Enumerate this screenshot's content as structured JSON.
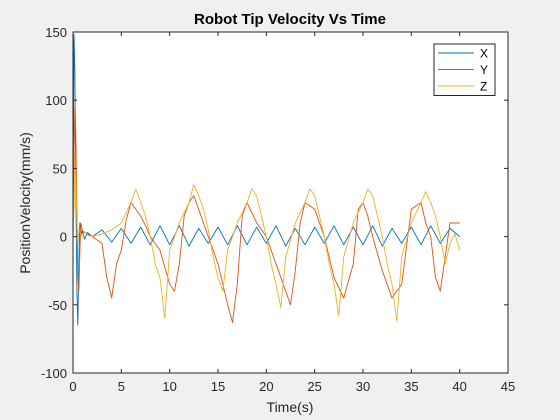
{
  "chart_data": {
    "type": "line",
    "title": "Robot Tip Velocity Vs Time",
    "xlabel": "Time(s)",
    "ylabel": "PositionVelocity(mm/s)",
    "xlim": [
      0,
      45
    ],
    "ylim": [
      -100,
      150
    ],
    "xticks": [
      0,
      5,
      10,
      15,
      20,
      25,
      30,
      35,
      40,
      45
    ],
    "yticks": [
      -100,
      -50,
      0,
      50,
      100,
      150
    ],
    "grid": false,
    "legend_position": "top-right",
    "series": [
      {
        "name": "X",
        "color": "#0072BD",
        "x": [
          0,
          0.1,
          0.2,
          0.3,
          0.4,
          0.5,
          0.6,
          0.7,
          0.8,
          0.9,
          1.0,
          1.2,
          1.5,
          2,
          3,
          4,
          5,
          6,
          7,
          8,
          9,
          10,
          11,
          12,
          13,
          14,
          15,
          16,
          17,
          18,
          19,
          20,
          21,
          22,
          23,
          24,
          25,
          26,
          27,
          28,
          29,
          30,
          31,
          32,
          33,
          34,
          35,
          36,
          37,
          38,
          39,
          40
        ],
        "values": [
          0,
          148,
          120,
          30,
          -40,
          -65,
          -20,
          10,
          6,
          2,
          4,
          -2,
          3,
          0,
          5,
          -4,
          6,
          -5,
          7,
          -6,
          8,
          -6,
          8,
          -7,
          6,
          -5,
          7,
          -6,
          8,
          -6,
          7,
          -5,
          8,
          -7,
          6,
          -6,
          7,
          -5,
          8,
          -6,
          7,
          -6,
          8,
          -7,
          6,
          -5,
          7,
          -6,
          8,
          -5,
          6,
          0
        ]
      },
      {
        "name": "Y",
        "color": "#D95319",
        "x": [
          0,
          0.1,
          0.2,
          0.3,
          0.4,
          0.5,
          0.6,
          0.8,
          1.0,
          1.5,
          2,
          3,
          3.5,
          4,
          4.5,
          5,
          5.5,
          6,
          6.5,
          7,
          7.5,
          8,
          9,
          10,
          10.5,
          11,
          11.5,
          12,
          12.5,
          13,
          13.5,
          14,
          15,
          16,
          16.5,
          17,
          17.5,
          18,
          19,
          20,
          21,
          22,
          22.5,
          23,
          23.5,
          24,
          25,
          26,
          27,
          28,
          29,
          29.5,
          30,
          30.5,
          31,
          32,
          33,
          34,
          35,
          36,
          36.5,
          37,
          37.5,
          38,
          39,
          40
        ],
        "values": [
          0,
          60,
          95,
          70,
          20,
          -30,
          -40,
          10,
          4,
          2,
          0,
          -5,
          -30,
          -45,
          -20,
          -10,
          12,
          25,
          20,
          15,
          8,
          0,
          -10,
          -35,
          -40,
          -20,
          15,
          25,
          30,
          20,
          10,
          0,
          -20,
          -50,
          -63,
          -35,
          15,
          25,
          10,
          0,
          -20,
          -40,
          -50,
          -25,
          10,
          25,
          20,
          0,
          -30,
          -45,
          -20,
          20,
          25,
          15,
          0,
          -25,
          -45,
          -35,
          20,
          25,
          10,
          0,
          -30,
          -40,
          10,
          10
        ]
      },
      {
        "name": "Z",
        "color": "#EDB120",
        "x": [
          0,
          0.1,
          0.2,
          0.3,
          0.4,
          0.5,
          0.6,
          0.8,
          1.0,
          1.5,
          2,
          3,
          4,
          5,
          6,
          6.5,
          7,
          7.5,
          8,
          8.5,
          9,
          9.5,
          10,
          11,
          12,
          12.5,
          13,
          13.5,
          14,
          14.5,
          15,
          15.5,
          16,
          17,
          18,
          18.5,
          19,
          19.5,
          20,
          20.5,
          21,
          21.5,
          22,
          23,
          24,
          24.5,
          25,
          25.5,
          26,
          26.5,
          27,
          27.5,
          28,
          29,
          30,
          30.5,
          31,
          31.5,
          32,
          32.5,
          33,
          33.5,
          34,
          35,
          36,
          36.5,
          37,
          37.5,
          38,
          38.5,
          39,
          39.5,
          40
        ],
        "values": [
          0,
          20,
          60,
          40,
          10,
          -5,
          5,
          2,
          0,
          1,
          0,
          2,
          5,
          10,
          25,
          35,
          25,
          15,
          0,
          -20,
          -30,
          -60,
          -10,
          10,
          25,
          38,
          30,
          20,
          5,
          -15,
          -30,
          -40,
          -10,
          10,
          25,
          35,
          30,
          15,
          0,
          -20,
          -35,
          -52,
          -15,
          10,
          25,
          35,
          30,
          15,
          0,
          -20,
          -35,
          -58,
          -15,
          10,
          25,
          35,
          30,
          15,
          0,
          -20,
          -35,
          -62,
          -15,
          10,
          25,
          33,
          25,
          15,
          0,
          -20,
          -5,
          2,
          -10
        ]
      }
    ]
  }
}
